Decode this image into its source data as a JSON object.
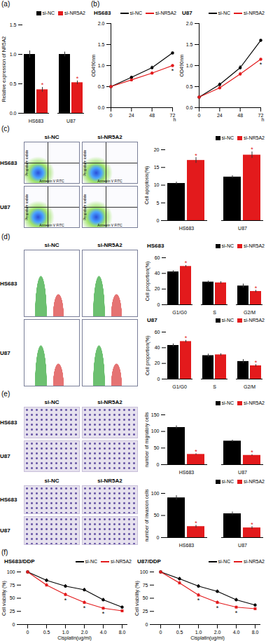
{
  "panel_labels": [
    "(a)",
    "(b)",
    "(c)",
    "(d)",
    "(e)",
    "(f)"
  ],
  "chart_data": [
    {
      "type": "bar",
      "categories": [
        "HS683",
        "U87"
      ],
      "y_label": "Relative expression of NR5A2",
      "ylim": [
        0,
        1.5
      ],
      "yticks": [
        {
          "value": 0,
          "label": "0.0"
        },
        {
          "value": 0.5,
          "label": "0.5"
        },
        {
          "value": 1,
          "label": "1.0"
        },
        {
          "value": 1.5,
          "label": "1.5"
        }
      ],
      "grid": false,
      "legend": "top",
      "series": [
        {
          "name": "si-NC",
          "color": "#000000",
          "values": [
            1.0,
            1.0
          ],
          "errors": [
            0.06,
            0.04
          ]
        },
        {
          "name": "si-NR5A2",
          "color": "#e31a1c",
          "values": [
            0.4,
            0.52
          ],
          "errors": [
            0.04,
            0.03
          ],
          "annotations": [
            "*",
            "*"
          ]
        }
      ]
    },
    {
      "type": "line",
      "title": "HS683",
      "x": [
        0,
        24,
        48,
        72
      ],
      "xlim": [
        0,
        72
      ],
      "xticks": [
        0,
        24,
        48,
        72
      ],
      "x_label": "h",
      "y_label": "OD490nm",
      "ylim": [
        0,
        2
      ],
      "yticks": [
        {
          "value": 0,
          "label": "0.0"
        },
        {
          "value": 0.5,
          "label": "0.5"
        },
        {
          "value": 1,
          "label": "1.0"
        },
        {
          "value": 1.5,
          "label": "1.5"
        },
        {
          "value": 2,
          "label": "2.0"
        }
      ],
      "grid": false,
      "legend": "top",
      "series": [
        {
          "name": "si-NC",
          "color": "#000000",
          "marker": "circle",
          "values": [
            0.5,
            0.72,
            0.95,
            1.3
          ],
          "errors": [
            0.02,
            0.03,
            0.04,
            0.05
          ]
        },
        {
          "name": "si-NR5A2",
          "color": "#e31a1c",
          "marker": "circle",
          "values": [
            0.5,
            0.66,
            0.82,
            1.0
          ],
          "errors": [
            0.02,
            0.03,
            0.03,
            0.04
          ],
          "annotations": [
            null,
            null,
            null,
            "*"
          ]
        }
      ]
    },
    {
      "type": "line",
      "title": "U87",
      "x": [
        0,
        24,
        48,
        72
      ],
      "xlim": [
        0,
        72
      ],
      "xticks": [
        0,
        24,
        48,
        72
      ],
      "x_label": "h",
      "y_label": "OD490nm",
      "ylim": [
        0,
        2
      ],
      "yticks": [
        {
          "value": 0,
          "label": "0.0"
        },
        {
          "value": 0.5,
          "label": "0.5"
        },
        {
          "value": 1,
          "label": "1.0"
        },
        {
          "value": 1.5,
          "label": "1.5"
        },
        {
          "value": 2,
          "label": "2.0"
        }
      ],
      "grid": false,
      "legend": "top",
      "series": [
        {
          "name": "si-NC",
          "color": "#000000",
          "marker": "circle",
          "values": [
            0.25,
            0.55,
            0.95,
            1.6
          ],
          "errors": [
            0.02,
            0.04,
            0.05,
            0.1
          ]
        },
        {
          "name": "si-NR5A2",
          "color": "#e31a1c",
          "marker": "circle",
          "values": [
            0.25,
            0.47,
            0.8,
            1.15
          ],
          "errors": [
            0.02,
            0.03,
            0.04,
            0.06
          ],
          "annotations": [
            null,
            null,
            null,
            "*"
          ]
        }
      ]
    },
    {
      "type": "bar",
      "categories": [
        "HS683",
        "U87"
      ],
      "y_label": "Cell apoptosis(%)",
      "ylim": [
        0,
        20
      ],
      "yticks": [
        0,
        5,
        10,
        15,
        20
      ],
      "grid": false,
      "legend": "top",
      "series": [
        {
          "name": "si-NC",
          "color": "#000000",
          "values": [
            10.5,
            12.3
          ],
          "errors": [
            0.4,
            0.4
          ]
        },
        {
          "name": "si-NR5A2",
          "color": "#e31a1c",
          "values": [
            17,
            18.5
          ],
          "errors": [
            0.8,
            0.9
          ],
          "annotations": [
            "*",
            "*"
          ]
        }
      ]
    },
    {
      "type": "bar",
      "title": "HS683",
      "categories": [
        "G1/G0",
        "S",
        "G2/M"
      ],
      "y_label": "Cell proportion(%)",
      "ylim": [
        0,
        60
      ],
      "yticks": [
        0,
        20,
        40,
        60
      ],
      "grid": false,
      "legend": "top",
      "series": [
        {
          "name": "si-NC",
          "color": "#000000",
          "values": [
            42,
            29,
            24
          ],
          "errors": [
            1.5,
            1.2,
            2.5
          ]
        },
        {
          "name": "si-NR5A2",
          "color": "#e31a1c",
          "values": [
            49,
            28,
            17
          ],
          "errors": [
            1.2,
            1.5,
            1.5
          ],
          "annotations": [
            "*",
            null,
            "*"
          ]
        }
      ]
    },
    {
      "type": "bar",
      "title": "U87",
      "categories": [
        "G1/G0",
        "S",
        "G2/M"
      ],
      "y_label": "Cell proportion(%)",
      "ylim": [
        0,
        60
      ],
      "yticks": [
        0,
        20,
        40,
        60
      ],
      "grid": false,
      "legend": "top",
      "series": [
        {
          "name": "si-NC",
          "color": "#000000",
          "values": [
            43,
            30,
            22.5
          ],
          "errors": [
            2,
            2,
            2.5
          ]
        },
        {
          "name": "si-NR5A2",
          "color": "#e31a1c",
          "values": [
            48,
            31,
            17
          ],
          "errors": [
            1.5,
            1.5,
            1.5
          ],
          "annotations": [
            "*",
            null,
            "*"
          ]
        }
      ]
    },
    {
      "type": "bar",
      "categories": [
        "HS683",
        "U87"
      ],
      "y_label": "number of migratory cells",
      "ylim": [
        0,
        150
      ],
      "yticks": [
        0,
        50,
        100,
        150
      ],
      "grid": false,
      "legend": "top",
      "series": [
        {
          "name": "si-NC",
          "color": "#000000",
          "values": [
            112,
            71
          ],
          "errors": [
            5,
            3
          ]
        },
        {
          "name": "si-NR5A2",
          "color": "#e31a1c",
          "values": [
            31,
            28
          ],
          "errors": [
            2,
            2
          ],
          "annotations": [
            "*",
            "*"
          ]
        }
      ]
    },
    {
      "type": "bar",
      "categories": [
        "HS683",
        "U87"
      ],
      "y_label": "number of invasion cells",
      "ylim": [
        0,
        100
      ],
      "yticks": [
        0,
        50,
        100
      ],
      "grid": false,
      "legend": "top",
      "series": [
        {
          "name": "si-NC",
          "color": "#000000",
          "values": [
            90,
            54
          ],
          "errors": [
            5,
            4
          ]
        },
        {
          "name": "si-NR5A2",
          "color": "#e31a1c",
          "values": [
            25,
            22
          ],
          "errors": [
            3,
            3
          ],
          "annotations": [
            "*",
            "*"
          ]
        }
      ]
    },
    {
      "type": "line",
      "title": "HS683/DDP",
      "categories": [
        "0",
        "0.5",
        "1.0",
        "2.0",
        "4.0",
        "8.0"
      ],
      "x_label": "Cisplatin(ug/ml)",
      "y_label": "Cell viability (%)",
      "ylim": [
        0,
        100
      ],
      "yticks": [
        0,
        25,
        50,
        75,
        100
      ],
      "grid": false,
      "legend": "top",
      "series": [
        {
          "name": "si-NC",
          "color": "#000000",
          "marker": "circle",
          "values": [
            100,
            84,
            73,
            66,
            47,
            33
          ],
          "errors": [
            1,
            3,
            3,
            3,
            3,
            2
          ]
        },
        {
          "name": "si-NR5A2",
          "color": "#e31a1c",
          "marker": "square",
          "values": [
            100,
            75,
            57,
            42,
            31,
            26
          ],
          "errors": [
            1,
            3,
            3,
            3,
            2,
            2
          ],
          "annotations": [
            null,
            null,
            "*",
            "*",
            "*",
            null
          ]
        }
      ]
    },
    {
      "type": "line",
      "title": "U87/DDP",
      "categories": [
        "0",
        "0.5",
        "1.0",
        "2.0",
        "4.0",
        "8.0"
      ],
      "x_label": "Cisplatin(ug/ml)",
      "y_label": "Cell viability (%)",
      "ylim": [
        0,
        100
      ],
      "yticks": [
        0,
        25,
        50,
        75,
        100
      ],
      "grid": false,
      "legend": "top",
      "series": [
        {
          "name": "si-NC",
          "color": "#000000",
          "marker": "circle",
          "values": [
            100,
            87,
            73,
            63,
            47,
            37
          ],
          "errors": [
            1,
            3,
            3,
            3,
            3,
            2
          ]
        },
        {
          "name": "si-NR5A2",
          "color": "#e31a1c",
          "marker": "square",
          "values": [
            100,
            79,
            56,
            42,
            33,
            30
          ],
          "errors": [
            1,
            3,
            3,
            3,
            2,
            2
          ],
          "annotations": [
            null,
            null,
            "*",
            "*",
            "*",
            null
          ]
        }
      ]
    }
  ],
  "image_grids": [
    {
      "type": "flow",
      "columns": [
        "si-NC",
        "si-NR5A2"
      ],
      "rows": [
        "HS683",
        "U87"
      ],
      "x_label": "Annexin V FITC",
      "y_label": "Propidium iodide"
    },
    {
      "type": "histogram",
      "columns": [
        "si-NC",
        "si-NR5A2"
      ],
      "rows": [
        "HS683",
        "U87"
      ]
    },
    {
      "type": "micrograph",
      "columns": [
        "si-NC",
        "si-NR5A2"
      ],
      "rows": [
        "HS683",
        "U87"
      ]
    },
    {
      "type": "micrograph",
      "columns": [
        "si-NC",
        "si-NR5A2"
      ],
      "rows": [
        "HS683",
        "U87"
      ]
    }
  ]
}
